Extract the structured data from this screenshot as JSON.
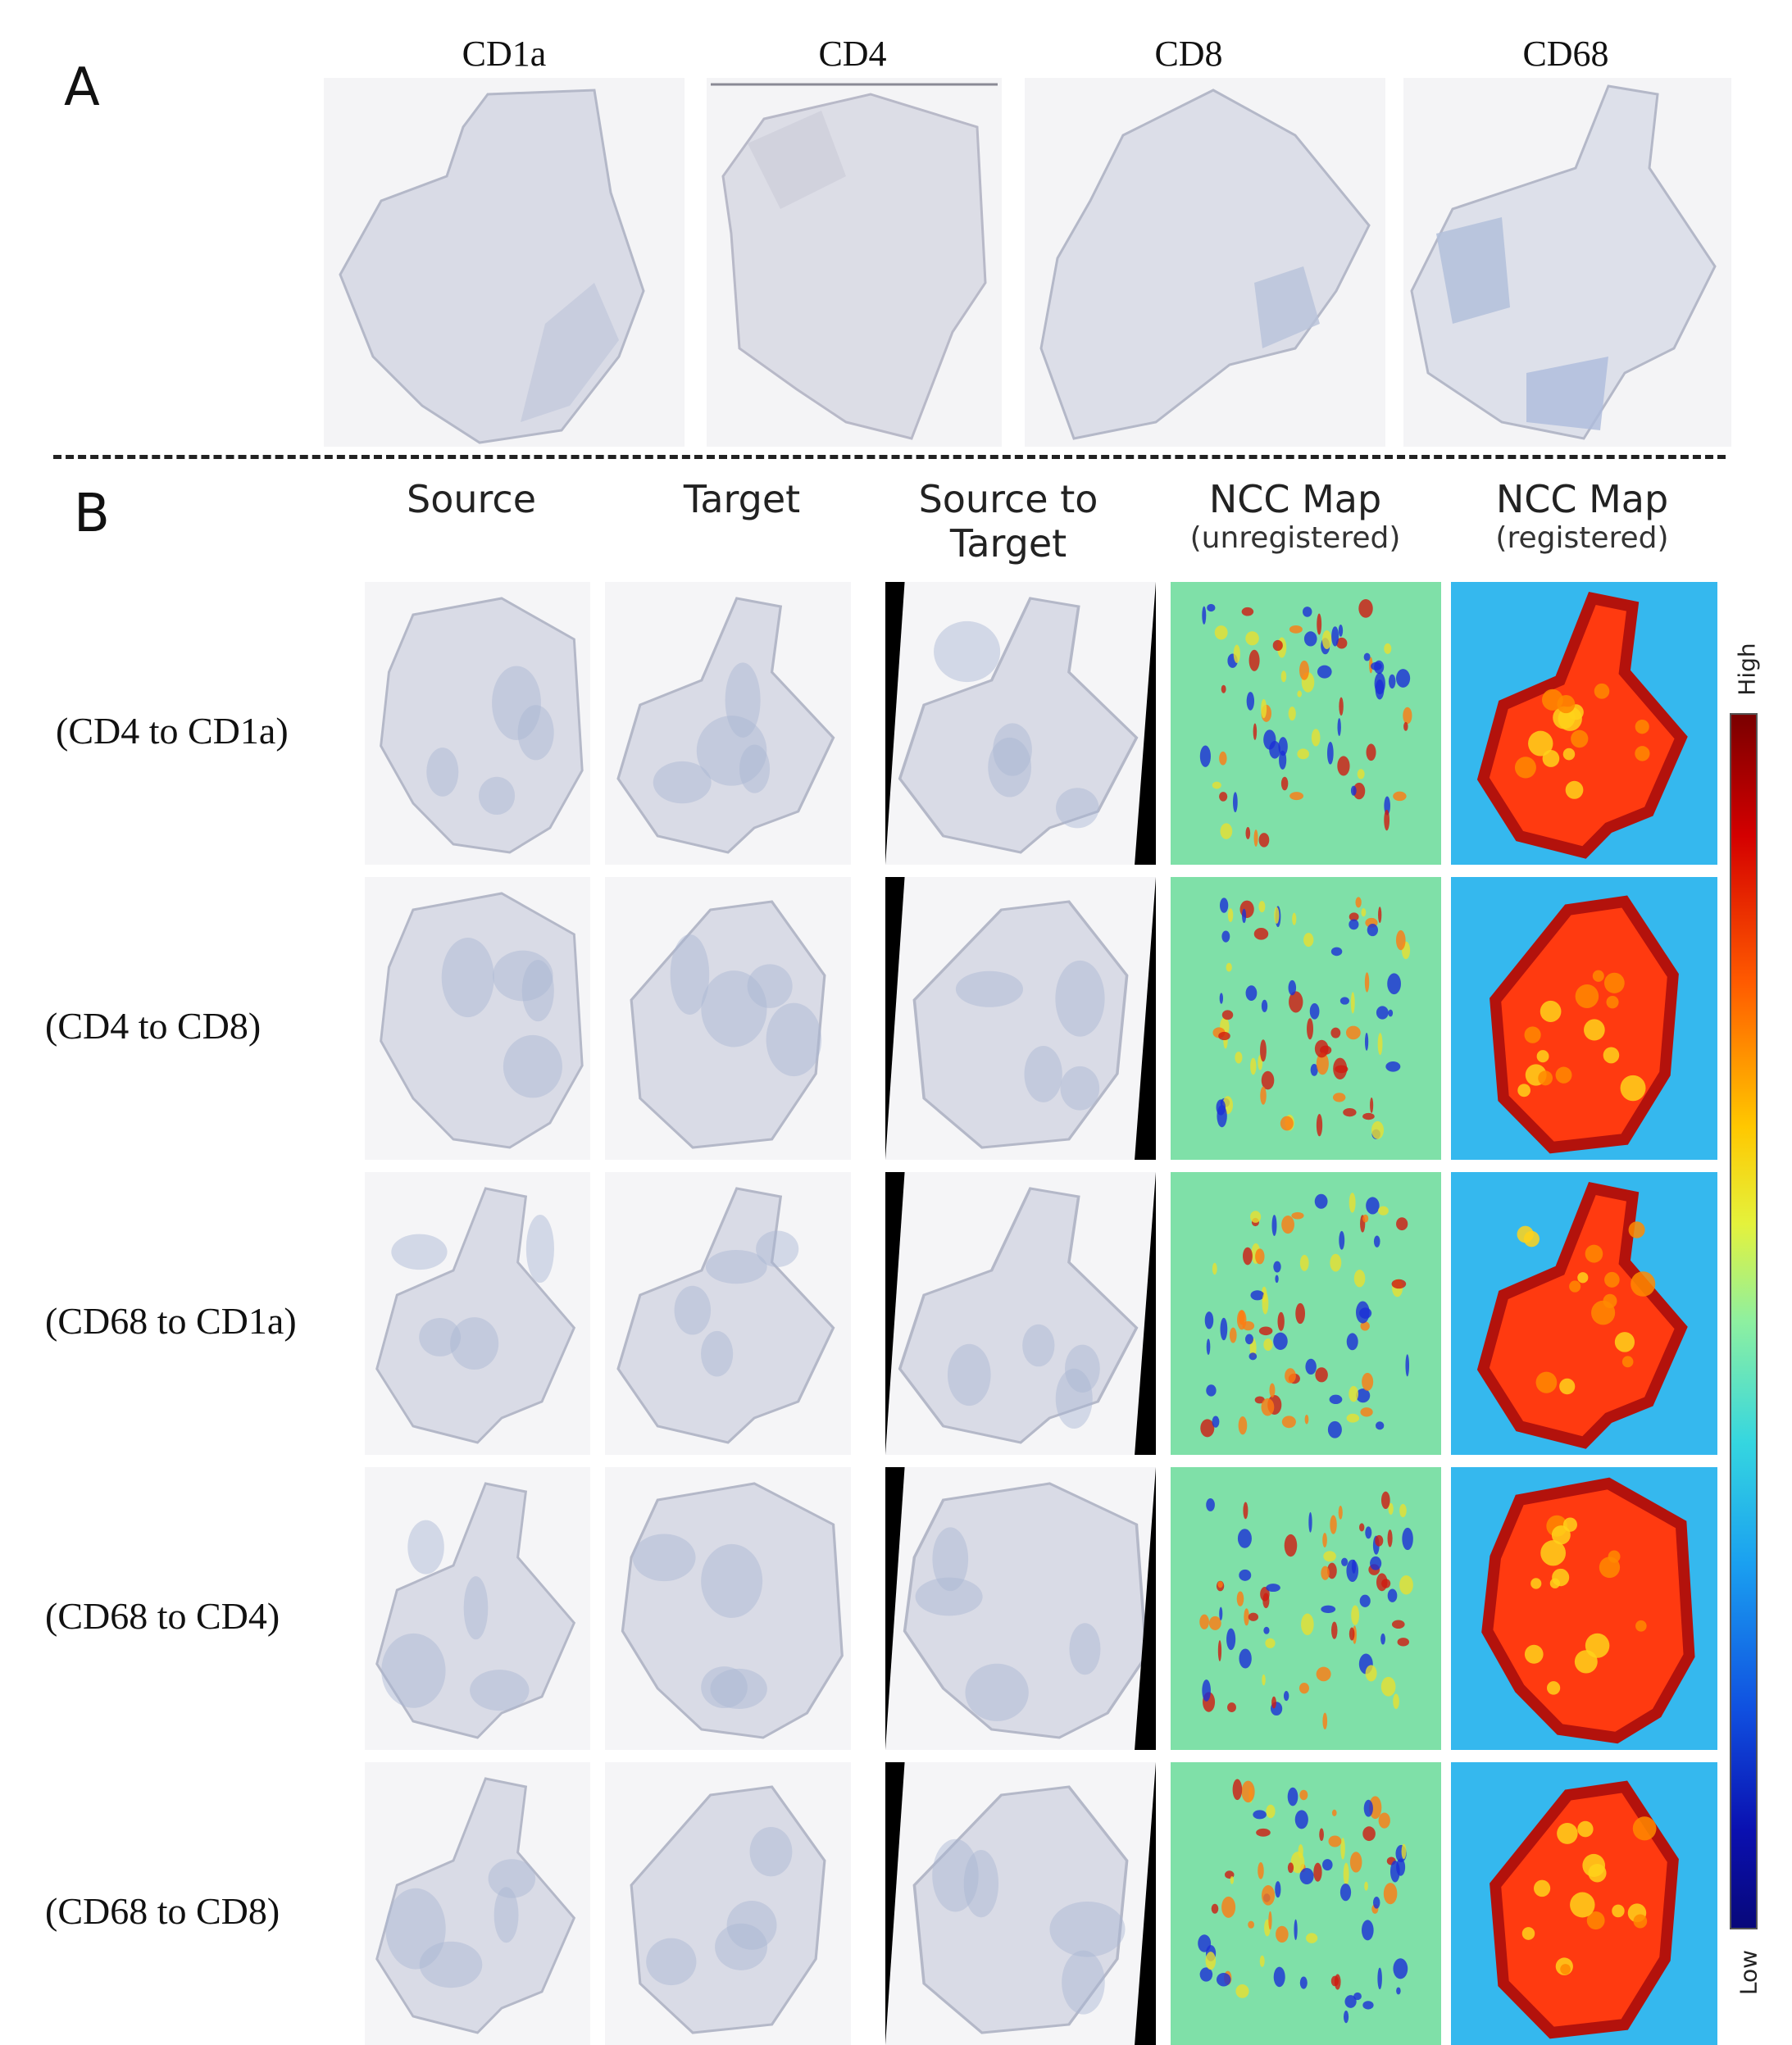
{
  "panel_a": {
    "letter": "A",
    "stains": [
      "CD1a",
      "CD4",
      "CD8",
      "CD68"
    ]
  },
  "panel_b": {
    "letter": "B",
    "columns": {
      "source": "Source",
      "target": "Target",
      "source_to_target_line1": "Source to",
      "source_to_target_line2": "Target",
      "ncc_unreg_title": "NCC Map",
      "ncc_unreg_sub": "(unregistered)",
      "ncc_reg_title": "NCC Map",
      "ncc_reg_sub": "(registered)"
    },
    "rows": [
      "(CD4 to CD1a)",
      "(CD4 to CD8)",
      "(CD68 to CD1a)",
      "(CD68 to CD4)",
      "(CD68 to CD8)"
    ],
    "colorbar": {
      "high": "High",
      "low": "Low"
    }
  },
  "colors": {
    "tissue": "#d9dbe6",
    "tissue_edge": "#b4b8c8",
    "stain_blue": "#a9b6d3",
    "ncc_background": "#7fe0a8",
    "ncc_low": "#1b2fd6",
    "ncc_high": "#b3120c"
  }
}
